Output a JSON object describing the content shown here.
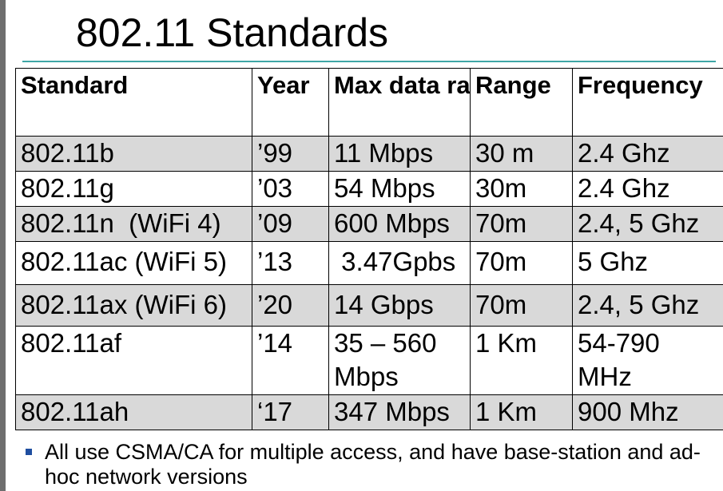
{
  "title": "802.11 Standards",
  "table": {
    "headers": [
      "Standard",
      "Year",
      "Max data rate",
      "Range",
      "Frequency"
    ],
    "rows": [
      [
        "802.11b",
        "’99",
        "11 Mbps",
        "30 m",
        "2.4 Ghz"
      ],
      [
        "802.11g",
        "’03",
        "54 Mbps",
        "30m",
        "2.4 Ghz"
      ],
      [
        "802.11n  (WiFi 4)",
        "’09",
        "600 Mbps",
        "70m",
        "2.4, 5 Ghz"
      ],
      [
        "802.11ac (WiFi 5)",
        "’13",
        " 3.47Gpbs",
        "70m",
        "5 Ghz"
      ],
      [
        "802.11ax (WiFi 6)",
        "’20",
        "14 Gbps",
        "70m",
        "2.4, 5 Ghz"
      ],
      [
        "802.11af",
        "’14",
        "35 – 560 Mbps",
        "1 Km",
        "54-790 MHz"
      ],
      [
        "802.11ah",
        "‘17",
        "347 Mbps",
        "1 Km",
        "900 Mhz"
      ]
    ]
  },
  "note": "All use CSMA/CA for multiple access, and have base-station and ad-hoc network versions",
  "colors": {
    "shade": "#d9d9d9",
    "rule": "#3ea6a6",
    "bullet": "#1f4ea0"
  }
}
